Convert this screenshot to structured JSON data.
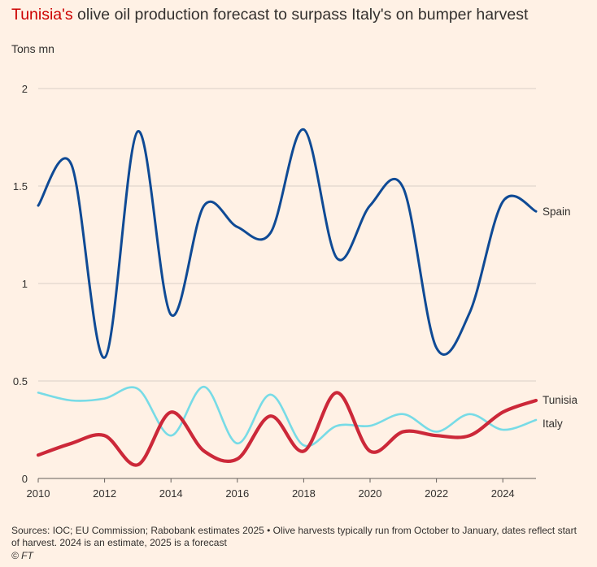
{
  "title": {
    "highlight": "Tunisia's",
    "rest": " olive oil production forecast to surpass Italy's on bumper harvest"
  },
  "colors": {
    "background": "#fff1e5",
    "spain": "#0f4a95",
    "italy": "#77dbe6",
    "tunisia": "#cc2839",
    "highlight": "#cc0000",
    "grid": "#d8cfc6"
  },
  "chart_data": {
    "type": "line",
    "ylabel": "Tons mn",
    "x": [
      2010,
      2011,
      2012,
      2013,
      2014,
      2015,
      2016,
      2017,
      2018,
      2019,
      2020,
      2021,
      2022,
      2023,
      2024,
      2025
    ],
    "xlim": [
      2010,
      2025
    ],
    "ylim": [
      0,
      2
    ],
    "xticks": [
      2010,
      2012,
      2014,
      2016,
      2018,
      2020,
      2022,
      2024
    ],
    "xtick_labels": [
      "2010",
      "2012",
      "2014",
      "2016",
      "2018",
      "2020",
      "2022",
      "2024"
    ],
    "yticks": [
      0,
      0.5,
      1,
      1.5,
      2
    ],
    "ytick_labels": [
      "0",
      "0.5",
      "1",
      "1.5",
      "2"
    ],
    "grid": true,
    "series": [
      {
        "name": "Spain",
        "color": "#0f4a95",
        "values": [
          1.4,
          1.61,
          0.62,
          1.78,
          0.84,
          1.4,
          1.29,
          1.26,
          1.79,
          1.13,
          1.4,
          1.49,
          0.67,
          0.85,
          1.42,
          1.37
        ]
      },
      {
        "name": "Tunisia",
        "color": "#cc2839",
        "values": [
          0.12,
          0.18,
          0.22,
          0.07,
          0.34,
          0.14,
          0.1,
          0.32,
          0.14,
          0.44,
          0.14,
          0.24,
          0.22,
          0.22,
          0.34,
          0.4
        ]
      },
      {
        "name": "Italy",
        "color": "#77dbe6",
        "values": [
          0.44,
          0.4,
          0.41,
          0.46,
          0.22,
          0.47,
          0.18,
          0.43,
          0.17,
          0.27,
          0.27,
          0.33,
          0.24,
          0.33,
          0.25,
          0.3
        ]
      }
    ]
  },
  "footer": {
    "source": "Sources: IOC; EU Commission; Rabobank estimates 2025 • Olive harvests typically run from October to January, dates reflect start of harvest. 2024 is an estimate, 2025 is a forecast",
    "credit": "© FT"
  }
}
